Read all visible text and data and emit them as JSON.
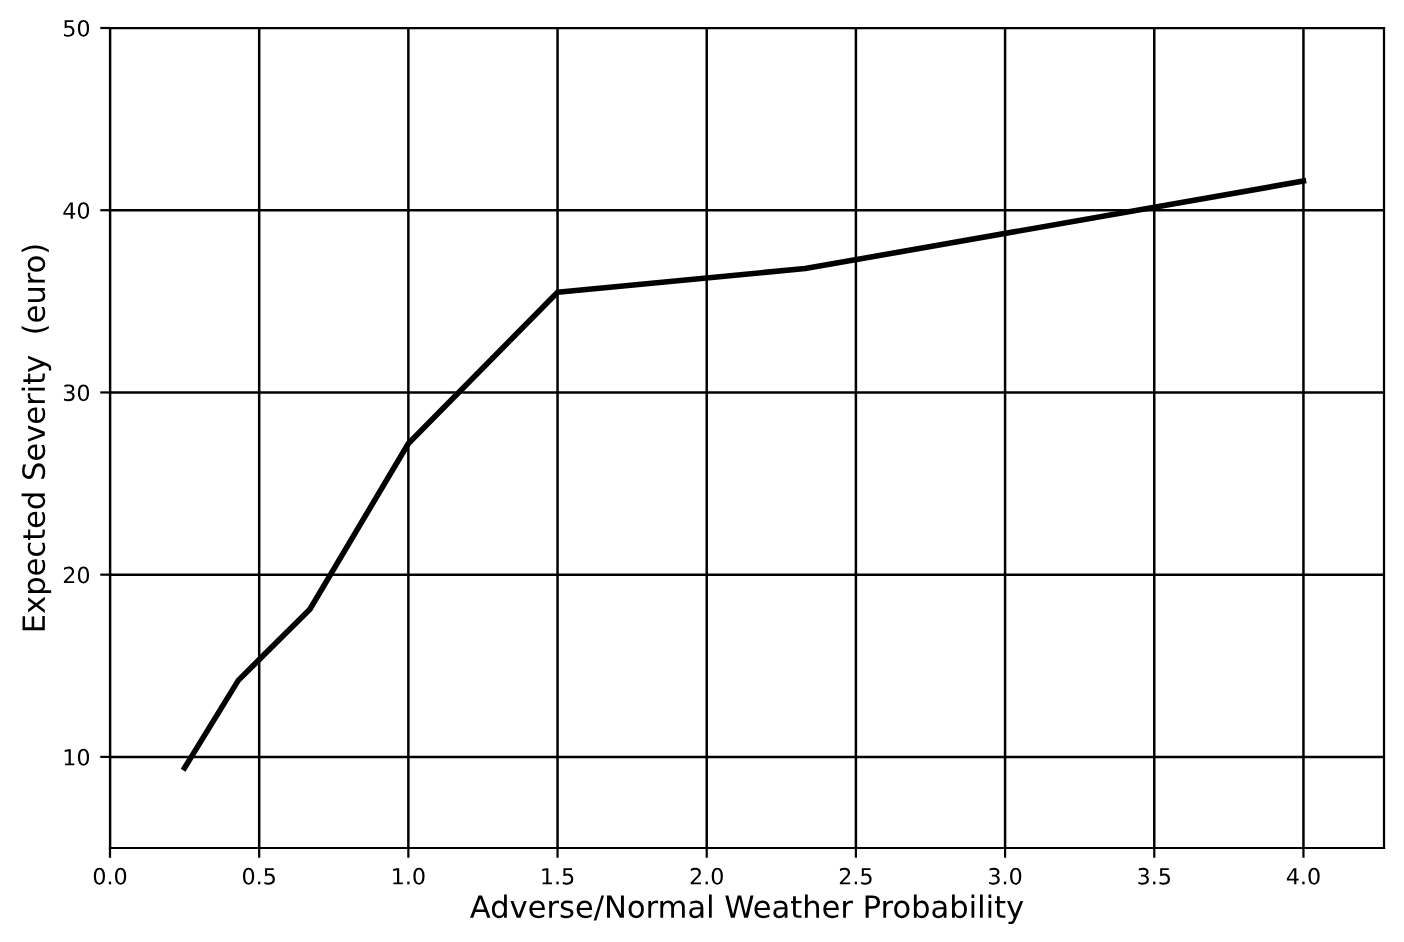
{
  "chart_data": {
    "type": "line",
    "xlabel": "Adverse/Normal Weather Probability",
    "ylabel": "Expected Severity  (euro)",
    "x": [
      0.25,
      0.43,
      0.67,
      1.0,
      1.5,
      2.33,
      4.0
    ],
    "series": [
      {
        "color": "#000000",
        "values": [
          9.4,
          14.2,
          18.1,
          27.2,
          35.5,
          36.8,
          41.6
        ]
      }
    ],
    "xlim": [
      0,
      4.27
    ],
    "ylim": [
      5,
      50
    ],
    "xticks": [
      {
        "value": 0,
        "label": "0.0"
      },
      {
        "value": 0.5,
        "label": "0.5"
      },
      {
        "value": 1,
        "label": "1.0"
      },
      {
        "value": 1.5,
        "label": "1.5"
      },
      {
        "value": 2,
        "label": "2.0"
      },
      {
        "value": 2.5,
        "label": "2.5"
      },
      {
        "value": 3,
        "label": "3.0"
      },
      {
        "value": 3.5,
        "label": "3.5"
      },
      {
        "value": 4,
        "label": "4.0"
      }
    ],
    "yticks": [
      10,
      20,
      30,
      40,
      50
    ],
    "grid": true,
    "marker": "none",
    "line_style": "solid"
  }
}
